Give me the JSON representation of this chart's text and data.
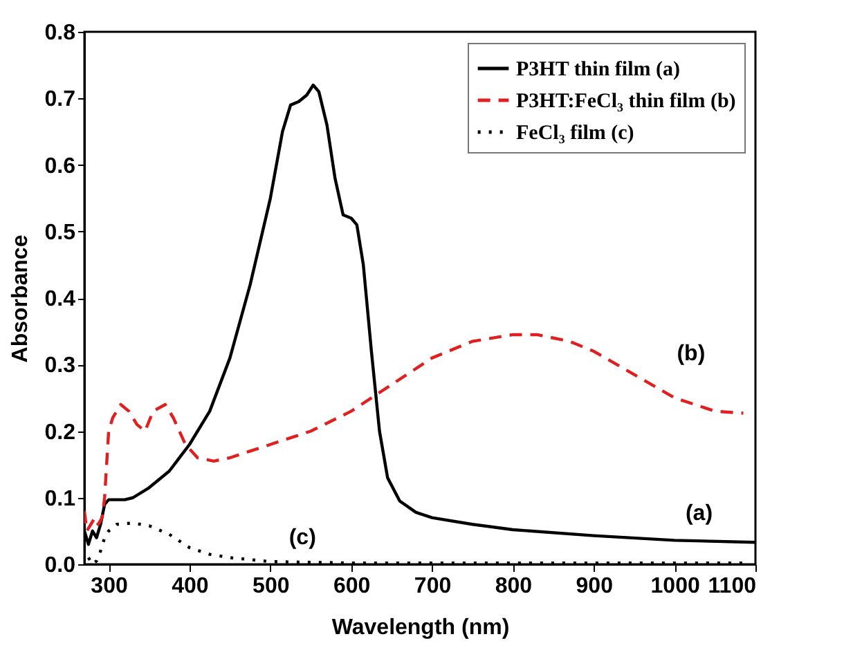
{
  "chart_data": {
    "type": "line",
    "xlabel": "Wavelength (nm)",
    "ylabel": "Absorbance",
    "xlim": [
      270,
      1100
    ],
    "xticks": [
      300,
      400,
      500,
      600,
      700,
      800,
      900,
      1000,
      1100
    ],
    "ylim": [
      0,
      0.8
    ],
    "yticks": [
      {
        "value": 0,
        "label": "0.0"
      },
      0.1,
      0.2,
      0.3,
      0.4,
      0.5,
      0.6,
      0.7,
      0.8
    ],
    "grid": false,
    "legend": "top right",
    "annotations": [
      "(a)",
      "(b)",
      "(c)"
    ],
    "series": [
      {
        "name": "P3HT thin film (a)",
        "color": "#000000",
        "line_style": "solid",
        "x": [
          270,
          275,
          280,
          285,
          290,
          295,
          300,
          320,
          330,
          350,
          375,
          400,
          425,
          450,
          475,
          500,
          515,
          525,
          535,
          545,
          553,
          560,
          570,
          580,
          590,
          600,
          607,
          615,
          625,
          635,
          645,
          660,
          680,
          700,
          750,
          800,
          900,
          1000,
          1100
        ],
        "values": [
          0.05,
          0.03,
          0.05,
          0.04,
          0.06,
          0.09,
          0.097,
          0.097,
          0.1,
          0.115,
          0.14,
          0.18,
          0.23,
          0.31,
          0.42,
          0.55,
          0.65,
          0.69,
          0.695,
          0.705,
          0.72,
          0.71,
          0.66,
          0.58,
          0.525,
          0.52,
          0.51,
          0.45,
          0.32,
          0.2,
          0.13,
          0.095,
          0.078,
          0.07,
          0.06,
          0.052,
          0.043,
          0.036,
          0.033
        ]
      },
      {
        "name": "P3HT:FeCl₃ thin film (b)",
        "color": "#e02020",
        "line_style": "dashed",
        "x": [
          270,
          273,
          278,
          283,
          287,
          292,
          295,
          300,
          305,
          315,
          325,
          335,
          345,
          355,
          370,
          380,
          395,
          410,
          430,
          450,
          500,
          550,
          600,
          650,
          700,
          750,
          800,
          830,
          870,
          900,
          950,
          1000,
          1050,
          1085
        ],
        "values": [
          0.08,
          0.05,
          0.06,
          0.07,
          0.06,
          0.07,
          0.1,
          0.2,
          0.22,
          0.24,
          0.23,
          0.21,
          0.2,
          0.23,
          0.24,
          0.22,
          0.18,
          0.16,
          0.155,
          0.16,
          0.18,
          0.2,
          0.23,
          0.27,
          0.31,
          0.335,
          0.345,
          0.345,
          0.335,
          0.32,
          0.285,
          0.25,
          0.23,
          0.227
        ]
      },
      {
        "name": "FeCl₃ film (c)",
        "color": "#000000",
        "line_style": "dotted",
        "x": [
          275,
          280,
          285,
          290,
          295,
          300,
          310,
          330,
          350,
          375,
          400,
          425,
          450,
          500,
          550,
          600,
          700,
          800,
          1000,
          1085
        ],
        "values": [
          0.01,
          0.0,
          0.005,
          0.02,
          0.04,
          0.05,
          0.06,
          0.062,
          0.058,
          0.045,
          0.025,
          0.015,
          0.01,
          0.004,
          0.003,
          0.002,
          0.002,
          0.002,
          0.002,
          0.002
        ]
      }
    ]
  }
}
